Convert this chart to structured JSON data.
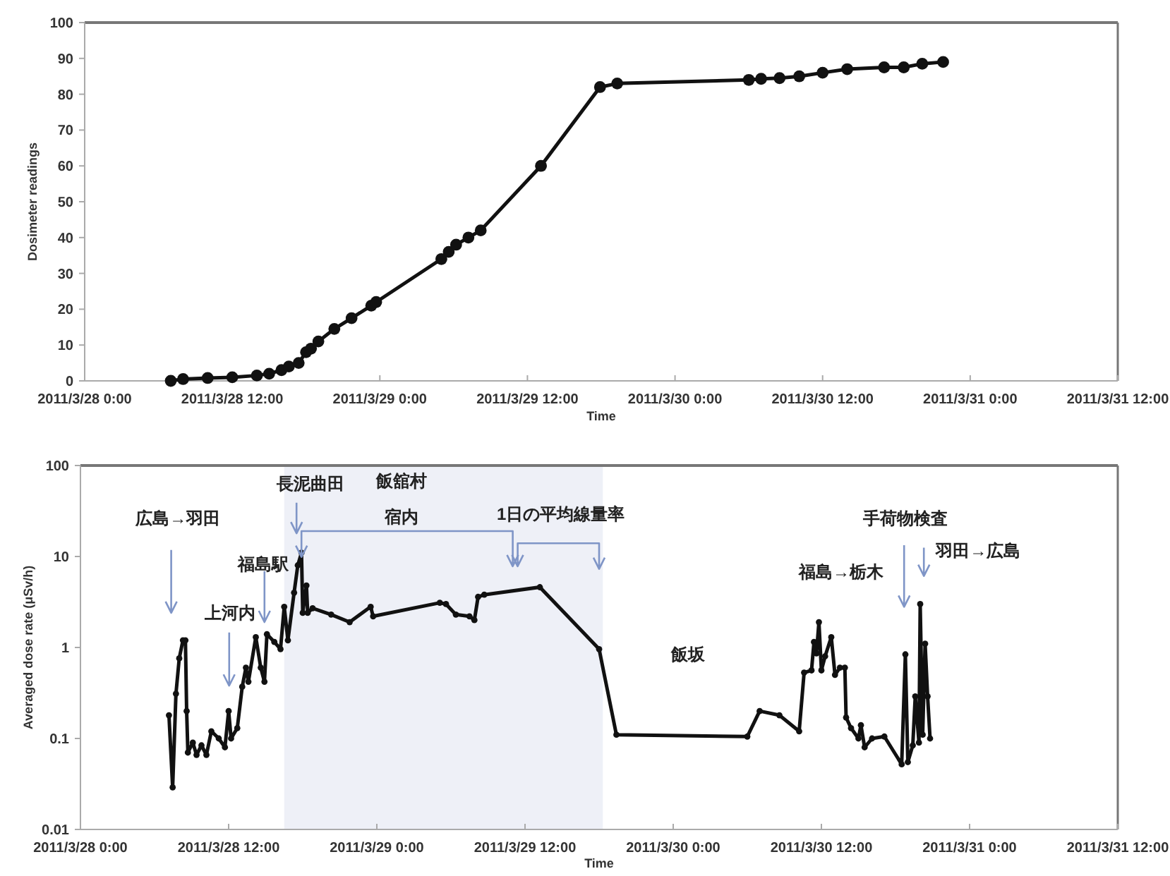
{
  "chart_data": [
    {
      "type": "line",
      "xlabel": "Time",
      "ylabel": "Dosimeter readings",
      "color": "#111111",
      "marker": "circle",
      "line_style": "solid",
      "xlim": [
        "2011-03-28T00:00",
        "2011-03-31T12:00"
      ],
      "xticks": [
        {
          "value": "2011-03-28T00:00",
          "label": "2011/3/28 0:00"
        },
        {
          "value": "2011-03-28T12:00",
          "label": "2011/3/28 12:00"
        },
        {
          "value": "2011-03-29T00:00",
          "label": "2011/3/29 0:00"
        },
        {
          "value": "2011-03-29T12:00",
          "label": "2011/3/29 12:00"
        },
        {
          "value": "2011-03-30T00:00",
          "label": "2011/3/30 0:00"
        },
        {
          "value": "2011-03-30T12:00",
          "label": "2011/3/30 12:00"
        },
        {
          "value": "2011-03-31T00:00",
          "label": "2011/3/31 0:00"
        },
        {
          "value": "2011-03-31T12:00",
          "label": "2011/3/31 12:00"
        }
      ],
      "ylim": [
        0,
        100
      ],
      "yticks": [
        0,
        10,
        20,
        30,
        40,
        50,
        60,
        70,
        80,
        90,
        100
      ],
      "x": [
        "2011-03-28T07:00",
        "2011-03-28T08:00",
        "2011-03-28T10:00",
        "2011-03-28T12:00",
        "2011-03-28T14:00",
        "2011-03-28T15:00",
        "2011-03-28T16:00",
        "2011-03-28T16:36",
        "2011-03-28T17:24",
        "2011-03-28T18:00",
        "2011-03-28T18:24",
        "2011-03-28T19:00",
        "2011-03-28T20:18",
        "2011-03-28T21:42",
        "2011-03-28T23:18",
        "2011-03-28T23:42",
        "2011-03-29T05:00",
        "2011-03-29T05:36",
        "2011-03-29T06:12",
        "2011-03-29T07:12",
        "2011-03-29T08:12",
        "2011-03-29T13:06",
        "2011-03-29T17:54",
        "2011-03-29T19:18",
        "2011-03-30T06:00",
        "2011-03-30T07:00",
        "2011-03-30T08:30",
        "2011-03-30T10:06",
        "2011-03-30T12:00",
        "2011-03-30T14:00",
        "2011-03-30T17:00",
        "2011-03-30T18:36",
        "2011-03-30T20:06",
        "2011-03-30T21:48"
      ],
      "values": [
        0,
        0.5,
        0.8,
        1,
        1.5,
        2,
        3,
        4,
        5,
        8,
        9,
        11,
        14.5,
        17.5,
        21,
        22,
        34,
        36,
        38,
        40,
        42,
        60,
        82,
        83,
        84,
        84.3,
        84.5,
        85,
        86,
        87,
        87.5,
        87.5,
        88.5,
        89
      ]
    },
    {
      "type": "line",
      "xlabel": "Time",
      "ylabel": "Averaged dose rate (μSv/h)",
      "color": "#111111",
      "marker": "circle",
      "line_style": "solid",
      "log": true,
      "xlim": [
        "2011-03-28T00:00",
        "2011-03-31T12:00"
      ],
      "xticks": [
        {
          "value": "2011-03-28T00:00",
          "label": "2011/3/28 0:00"
        },
        {
          "value": "2011-03-28T12:00",
          "label": "2011/3/28 12:00"
        },
        {
          "value": "2011-03-29T00:00",
          "label": "2011/3/29 0:00"
        },
        {
          "value": "2011-03-29T12:00",
          "label": "2011/3/29 12:00"
        },
        {
          "value": "2011-03-30T00:00",
          "label": "2011/3/30 0:00"
        },
        {
          "value": "2011-03-30T12:00",
          "label": "2011/3/30 12:00"
        },
        {
          "value": "2011-03-31T00:00",
          "label": "2011/3/31 0:00"
        },
        {
          "value": "2011-03-31T12:00",
          "label": "2011/3/31 12:00"
        }
      ],
      "ylim": [
        0.01,
        100
      ],
      "yticks": [
        0.01,
        0.1,
        1,
        10,
        100
      ],
      "bands": [
        {
          "axis": "x",
          "from": "2011-03-28T16:30",
          "to": "2011-03-29T18:18",
          "color": "#eef0f7"
        }
      ],
      "x": [
        "2011-03-28T07:10",
        "2011-03-28T07:28",
        "2011-03-28T07:44",
        "2011-03-28T08:00",
        "2011-03-28T08:18",
        "2011-03-28T08:30",
        "2011-03-28T08:36",
        "2011-03-28T08:42",
        "2011-03-28T09:06",
        "2011-03-28T09:24",
        "2011-03-28T09:48",
        "2011-03-28T10:12",
        "2011-03-28T10:36",
        "2011-03-28T11:12",
        "2011-03-28T11:42",
        "2011-03-28T12:00",
        "2011-03-28T12:12",
        "2011-03-28T12:42",
        "2011-03-28T13:06",
        "2011-03-28T13:24",
        "2011-03-28T13:36",
        "2011-03-28T14:12",
        "2011-03-28T14:36",
        "2011-03-28T14:54",
        "2011-03-28T15:06",
        "2011-03-28T15:42",
        "2011-03-28T16:12",
        "2011-03-28T16:30",
        "2011-03-28T16:48",
        "2011-03-28T17:18",
        "2011-03-28T17:36",
        "2011-03-28T17:54",
        "2011-03-28T18:00",
        "2011-03-28T18:18",
        "2011-03-28T18:24",
        "2011-03-28T18:48",
        "2011-03-28T20:18",
        "2011-03-28T21:48",
        "2011-03-28T23:30",
        "2011-03-28T23:42",
        "2011-03-29T05:06",
        "2011-03-29T05:36",
        "2011-03-29T06:24",
        "2011-03-29T07:30",
        "2011-03-29T07:54",
        "2011-03-29T08:12",
        "2011-03-29T08:42",
        "2011-03-29T13:12",
        "2011-03-29T18:00",
        "2011-03-29T19:24",
        "2011-03-30T06:00",
        "2011-03-30T07:00",
        "2011-03-30T08:36",
        "2011-03-30T10:12",
        "2011-03-30T10:36",
        "2011-03-30T11:12",
        "2011-03-30T11:24",
        "2011-03-30T11:36",
        "2011-03-30T11:48",
        "2011-03-30T12:00",
        "2011-03-30T12:18",
        "2011-03-30T12:48",
        "2011-03-30T13:06",
        "2011-03-30T13:30",
        "2011-03-30T13:54",
        "2011-03-30T14:00",
        "2011-03-30T14:24",
        "2011-03-30T15:00",
        "2011-03-30T15:12",
        "2011-03-30T15:30",
        "2011-03-30T16:06",
        "2011-03-30T17:06",
        "2011-03-30T18:30",
        "2011-03-30T18:48",
        "2011-03-30T19:00",
        "2011-03-30T19:24",
        "2011-03-30T19:36",
        "2011-03-30T19:54",
        "2011-03-30T20:00",
        "2011-03-30T20:12",
        "2011-03-30T20:24",
        "2011-03-30T20:36",
        "2011-03-30T20:48"
      ],
      "values": [
        0.18,
        0.029,
        0.31,
        0.76,
        1.2,
        1.2,
        0.2,
        0.07,
        0.09,
        0.066,
        0.084,
        0.066,
        0.12,
        0.1,
        0.08,
        0.2,
        0.1,
        0.13,
        0.37,
        0.6,
        0.42,
        1.3,
        0.6,
        0.42,
        1.4,
        1.15,
        0.96,
        2.8,
        1.2,
        4,
        8,
        11,
        2.4,
        4.8,
        2.4,
        2.7,
        2.3,
        1.9,
        2.8,
        2.2,
        3.1,
        3.0,
        2.3,
        2.2,
        2.0,
        3.6,
        3.8,
        4.6,
        0.96,
        0.11,
        0.105,
        0.2,
        0.18,
        0.12,
        0.53,
        0.56,
        1.15,
        0.86,
        1.9,
        0.56,
        0.8,
        1.3,
        0.5,
        0.6,
        0.6,
        0.17,
        0.13,
        0.1,
        0.14,
        0.08,
        0.1,
        0.105,
        0.052,
        0.84,
        0.055,
        0.084,
        0.29,
        0.09,
        3.0,
        0.11,
        1.1,
        0.29,
        0.1
      ],
      "annotations": [
        "広島→羽田",
        "上河内",
        "福島駅",
        "長泥曲田",
        "宿内",
        "飯舘村",
        "1日の平均線量率",
        "飯坂",
        "福島→栃木",
        "手荷物検査",
        "羽田→広島"
      ]
    }
  ]
}
